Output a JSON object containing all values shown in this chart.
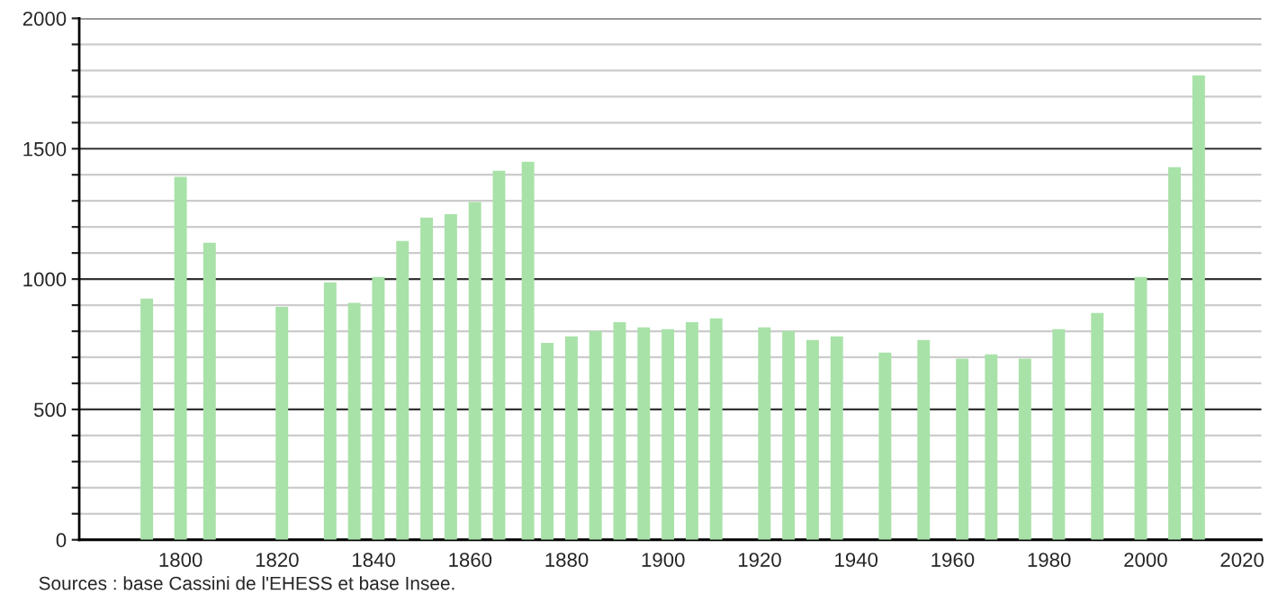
{
  "chart_data": {
    "type": "bar",
    "x": [
      1793,
      1800,
      1806,
      1821,
      1831,
      1836,
      1841,
      1846,
      1851,
      1856,
      1861,
      1866,
      1872,
      1876,
      1881,
      1886,
      1891,
      1896,
      1901,
      1906,
      1911,
      1921,
      1926,
      1931,
      1936,
      1946,
      1954,
      1962,
      1968,
      1975,
      1982,
      1990,
      1999,
      2006,
      2011
    ],
    "values": [
      925,
      1392,
      1139,
      893,
      987,
      909,
      1008,
      1146,
      1236,
      1249,
      1295,
      1415,
      1450,
      755,
      780,
      801,
      835,
      815,
      808,
      835,
      849,
      815,
      801,
      766,
      780,
      718,
      766,
      695,
      711,
      695,
      808,
      870,
      1008,
      1429,
      1781
    ],
    "color": "#a8e2a8",
    "xlim": [
      1779,
      2024
    ],
    "xticks": [
      1800,
      1820,
      1840,
      1860,
      1880,
      1900,
      1920,
      1940,
      1960,
      1980,
      2000,
      2020
    ],
    "ylim": [
      0,
      2000
    ],
    "yticks": [
      0,
      {
        "value": 100,
        "label": null
      },
      {
        "value": 200,
        "label": null
      },
      {
        "value": 300,
        "label": null
      },
      {
        "value": 400,
        "label": null
      },
      500,
      {
        "value": 600,
        "label": null
      },
      {
        "value": 700,
        "label": null
      },
      {
        "value": 800,
        "label": null
      },
      {
        "value": 900,
        "label": null
      },
      1000,
      {
        "value": 1100,
        "label": null
      },
      {
        "value": 1200,
        "label": null
      },
      {
        "value": 1300,
        "label": null
      },
      {
        "value": 1400,
        "label": null
      },
      1500,
      {
        "value": 1600,
        "label": null
      },
      {
        "value": 1700,
        "label": null
      },
      {
        "value": 1800,
        "label": null
      },
      {
        "value": 1900,
        "label": null
      },
      2000
    ],
    "grid": "y",
    "annotations": [
      "Sources : base Cassini de l'EHESS et base Insee."
    ]
  }
}
